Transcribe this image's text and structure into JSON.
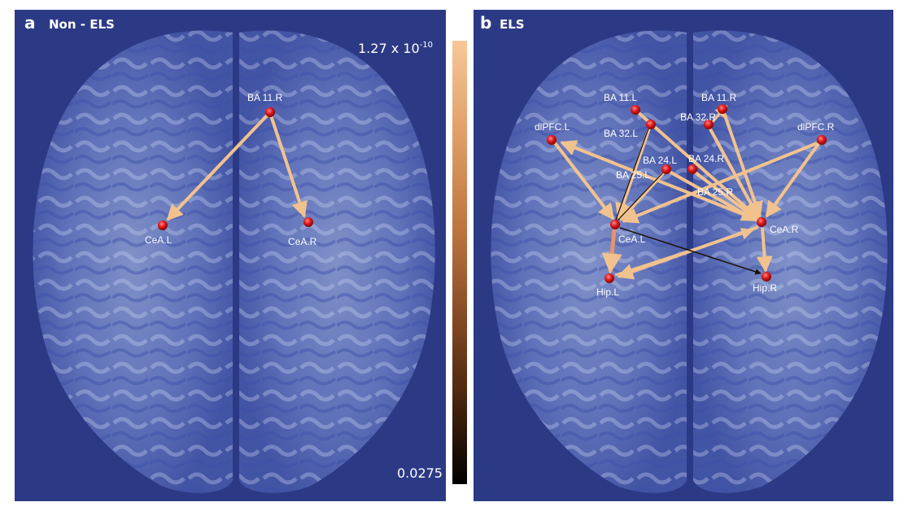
{
  "panels": [
    {
      "letter": "a",
      "title": "Non - ELS",
      "nodes": [
        "BA 11.R",
        "CeA.L",
        "CeA.R"
      ]
    },
    {
      "letter": "b",
      "title": "ELS",
      "nodes": [
        "BA 11.L",
        "BA 11.R",
        "BA 32.R",
        "BA 32.L",
        "dlPFC.L",
        "dlPFC.R",
        "BA 24.L",
        "BA 24.R",
        "BA 25.L",
        "BA 25.R",
        "CeA.L",
        "CeA.R",
        "Hip.L",
        "Hip.R"
      ]
    }
  ],
  "colorbar": {
    "max_base": "1.27 x 10",
    "max_exp": "-10",
    "min": "0.0275"
  },
  "colors": {
    "background": "#2c3a86",
    "node": "#e01818",
    "edge_strong": "#f2c28e",
    "edge_weak": "#1a1208"
  }
}
